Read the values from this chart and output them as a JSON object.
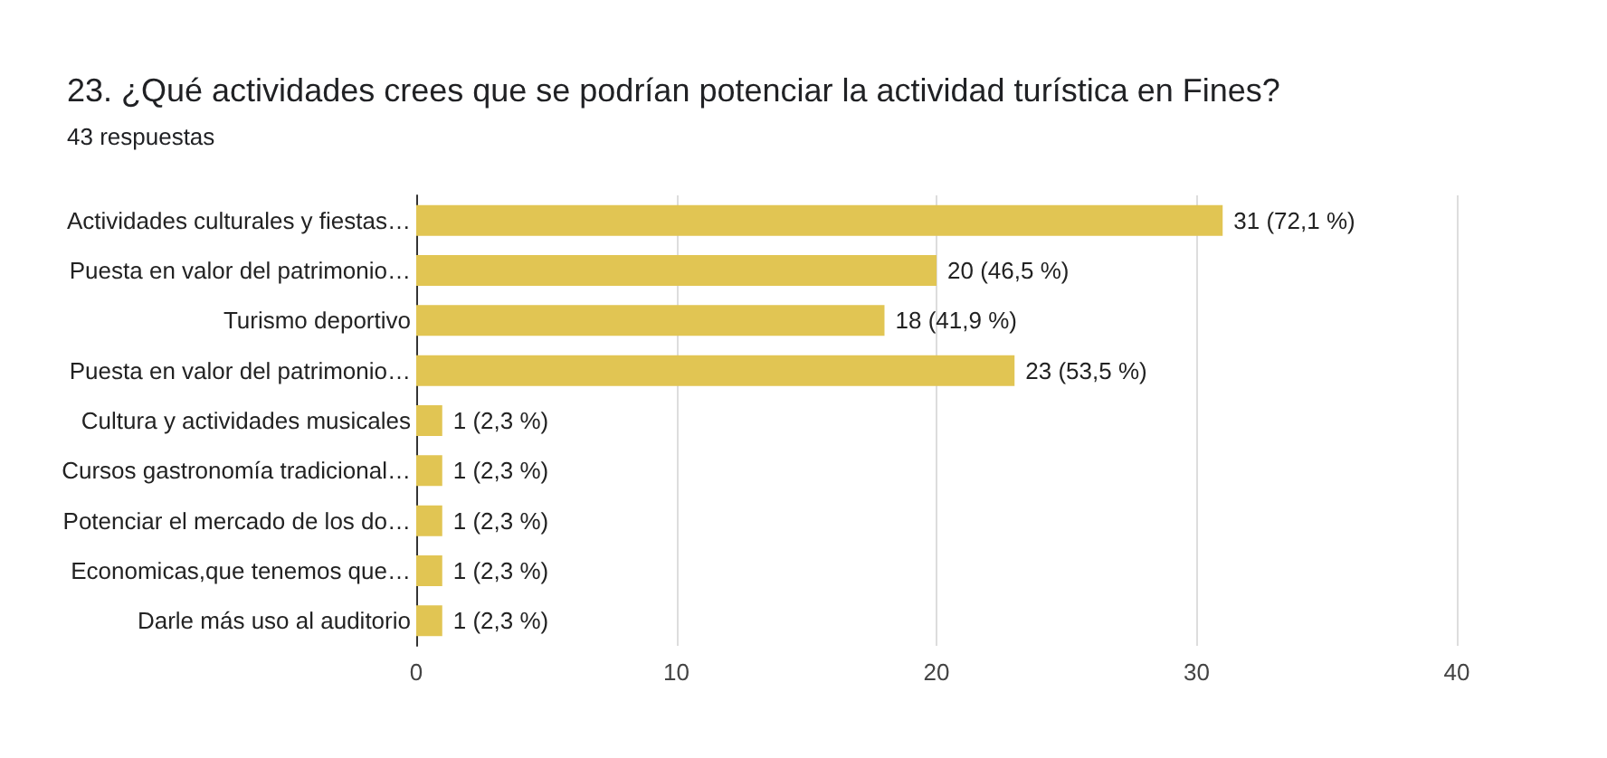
{
  "chart_data": {
    "type": "bar",
    "orientation": "horizontal",
    "title": "23. ¿Qué actividades crees que se podrían potenciar la actividad turística en Fines?",
    "subtitle": "43 respuestas",
    "categories": [
      "Actividades culturales y fiestas…",
      "Puesta en valor del patrimonio…",
      "Turismo deportivo",
      "Puesta en valor del patrimonio…",
      "Cultura y actividades musicales",
      "Cursos gastronomía tradicional…",
      "Potenciar el mercado de los do…",
      "Economicas,que tenemos que…",
      "Darle más uso al auditorio"
    ],
    "values": [
      31,
      20,
      18,
      23,
      1,
      1,
      1,
      1,
      1
    ],
    "value_labels": [
      "31 (72,1 %)",
      "20 (46,5 %)",
      "18 (41,9 %)",
      "23 (53,5 %)",
      "1 (2,3 %)",
      "1 (2,3 %)",
      "1 (2,3 %)",
      "1 (2,3 %)",
      "1 (2,3 %)"
    ],
    "color": "#e1c553",
    "xlim": [
      0,
      40
    ],
    "xticks": [
      0,
      10,
      20,
      30,
      40
    ],
    "grid": "x"
  }
}
